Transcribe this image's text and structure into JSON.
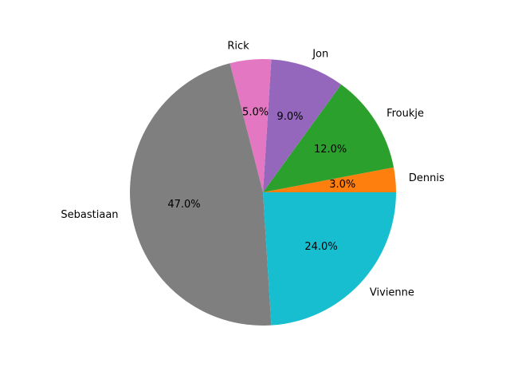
{
  "chart_data": {
    "type": "pie",
    "title": "",
    "start_angle_deg": 0,
    "direction": "counterclockwise",
    "slices": [
      {
        "label": "Dennis",
        "value": 3.0,
        "pct_label": "3.0%",
        "color": "#ff7f0e"
      },
      {
        "label": "Froukje",
        "value": 12.0,
        "pct_label": "12.0%",
        "color": "#2ca02c"
      },
      {
        "label": "Jon",
        "value": 9.0,
        "pct_label": "9.0%",
        "color": "#9467bd"
      },
      {
        "label": "Rick",
        "value": 5.0,
        "pct_label": "5.0%",
        "color": "#e377c2"
      },
      {
        "label": "Sebastiaan",
        "value": 47.0,
        "pct_label": "47.0%",
        "color": "#7f7f7f"
      },
      {
        "label": "Vivienne",
        "value": 24.0,
        "pct_label": "24.0%",
        "color": "#17becf"
      }
    ]
  }
}
